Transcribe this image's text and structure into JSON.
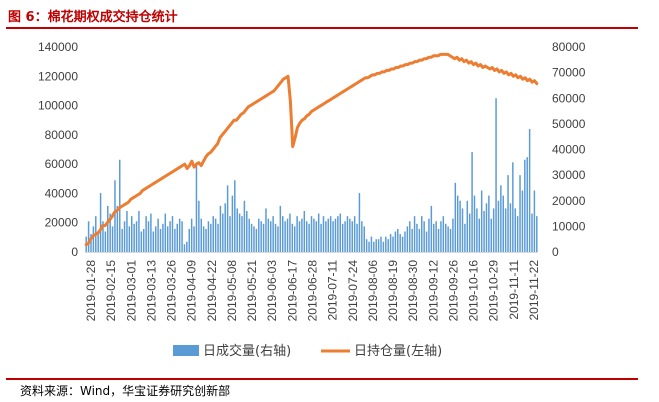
{
  "title": "图 6：棉花期权成交持仓统计",
  "source": "资料来源：Wind，华宝证券研究创新部",
  "colors": {
    "bar": "#5b9bd5",
    "line": "#ed7d31",
    "accent": "#c00000"
  },
  "chart_data": {
    "type": "bar+line",
    "left_axis": {
      "min": 0,
      "max": 140000,
      "ticks": [
        "0",
        "20000",
        "40000",
        "60000",
        "80000",
        "100000",
        "120000",
        "140000"
      ]
    },
    "right_axis": {
      "min": 0,
      "max": 80000,
      "ticks": [
        "0",
        "10000",
        "20000",
        "30000",
        "40000",
        "50000",
        "60000",
        "70000",
        "80000"
      ]
    },
    "x_tick_labels": [
      "2019-01-28",
      "2019-02-15",
      "2019-03-01",
      "2019-03-13",
      "2019-03-26",
      "2019-04-09",
      "2019-04-22",
      "2019-05-08",
      "2019-05-21",
      "2019-06-03",
      "2019-06-17",
      "2019-06-28",
      "2019-07-11",
      "2019-07-24",
      "2019-08-06",
      "2019-08-19",
      "2019-08-30",
      "2019-09-12",
      "2019-09-26",
      "2019-10-16",
      "2019-10-29",
      "2019-11-11",
      "2019-11-22"
    ],
    "legend": [
      "日成交量(右轴)",
      "日持仓量(左轴)"
    ],
    "series": [
      {
        "name": "日成交量(右轴)",
        "axis": "right",
        "type": "bar",
        "values": [
          6000,
          12000,
          7000,
          10000,
          14000,
          8000,
          23000,
          12000,
          8000,
          18000,
          15000,
          10000,
          28000,
          18000,
          36000,
          9000,
          12000,
          16000,
          10000,
          14000,
          11000,
          12000,
          16000,
          8000,
          9000,
          14000,
          12000,
          15000,
          8000,
          10000,
          13000,
          9000,
          11000,
          15000,
          10000,
          12000,
          14000,
          9000,
          11000,
          13000,
          12000,
          3000,
          4000,
          9000,
          13000,
          10000,
          35000,
          20000,
          13000,
          10000,
          9000,
          12000,
          11000,
          14000,
          13000,
          11000,
          18000,
          15000,
          19000,
          26000,
          14000,
          22000,
          28000,
          17000,
          15000,
          14000,
          20000,
          16000,
          13000,
          11000,
          10000,
          9000,
          13000,
          12000,
          11000,
          17000,
          13000,
          12000,
          14000,
          11000,
          10000,
          18000,
          14000,
          12000,
          13000,
          15000,
          11000,
          10000,
          14000,
          12000,
          13000,
          16000,
          12000,
          11000,
          14000,
          13000,
          12000,
          15000,
          11000,
          14000,
          12000,
          13000,
          14000,
          12000,
          13000,
          14000,
          15000,
          11000,
          12000,
          14000,
          13000,
          12000,
          14000,
          11000,
          23000,
          12000,
          10000,
          5000,
          4000,
          6000,
          4000,
          5000,
          5000,
          6000,
          4000,
          6000,
          5000,
          7000,
          6000,
          8000,
          9000,
          7000,
          6000,
          8000,
          10000,
          12000,
          9000,
          14000,
          11000,
          9000,
          14000,
          12000,
          8000,
          13000,
          18000,
          11000,
          12000,
          9000,
          12000,
          14000,
          11000,
          10000,
          9000,
          13000,
          27000,
          22000,
          20000,
          17000,
          11000,
          20000,
          15000,
          39000,
          22000,
          17000,
          13000,
          24000,
          16000,
          19000,
          22000,
          13000,
          17000,
          60000,
          20000,
          26000,
          22000,
          17000,
          30000,
          19000,
          35000,
          17000,
          14000,
          30000,
          24000,
          36000,
          37000,
          48000,
          15000,
          24000,
          14000
        ]
      },
      {
        "name": "日持仓量(左轴)",
        "axis": "left",
        "type": "line",
        "values": [
          5000,
          6000,
          9000,
          11000,
          12000,
          13000,
          15000,
          18000,
          18000,
          20000,
          22000,
          24000,
          27000,
          28000,
          30000,
          31000,
          32000,
          33000,
          34000,
          36000,
          37000,
          38000,
          39000,
          40000,
          42000,
          43000,
          44000,
          45000,
          46000,
          47000,
          48000,
          49000,
          50000,
          51000,
          52000,
          53000,
          54000,
          55000,
          56000,
          57000,
          58000,
          59000,
          60000,
          57000,
          59000,
          62000,
          58000,
          60000,
          61000,
          59000,
          62000,
          65000,
          67000,
          68000,
          70000,
          72000,
          74000,
          78000,
          80000,
          82000,
          84000,
          86000,
          88000,
          90000,
          90000,
          92000,
          94000,
          95000,
          97000,
          99000,
          100000,
          101000,
          102000,
          103000,
          104000,
          105000,
          106000,
          107000,
          108000,
          109000,
          110000,
          112000,
          114000,
          116000,
          118000,
          119000,
          120000,
          103000,
          72000,
          78000,
          85000,
          88000,
          90000,
          91000,
          93000,
          94000,
          96000,
          97000,
          98000,
          99000,
          100000,
          101000,
          102000,
          103000,
          104000,
          105000,
          106000,
          107000,
          108000,
          109000,
          110000,
          111000,
          112000,
          113000,
          114000,
          115000,
          116000,
          117000,
          118000,
          119000,
          119000,
          120000,
          121000,
          121000,
          122000,
          122000,
          123000,
          123000,
          124000,
          124000,
          125000,
          125000,
          126000,
          126000,
          127000,
          127000,
          128000,
          128000,
          129000,
          129000,
          130000,
          130000,
          131000,
          131000,
          132000,
          132000,
          133000,
          133000,
          134000,
          134000,
          134000,
          135000,
          135000,
          135000,
          135000,
          134000,
          133000,
          132000,
          133000,
          131000,
          132000,
          130000,
          131000,
          129000,
          130000,
          128000,
          129000,
          127000,
          128000,
          126000,
          127000,
          126000,
          125000,
          126000,
          124000,
          125000,
          123000,
          124000,
          122000,
          123000,
          121000,
          122000,
          120000,
          121000,
          119000,
          120000,
          118000,
          119000,
          117000,
          118000,
          116000,
          117000,
          115000
        ]
      }
    ]
  }
}
